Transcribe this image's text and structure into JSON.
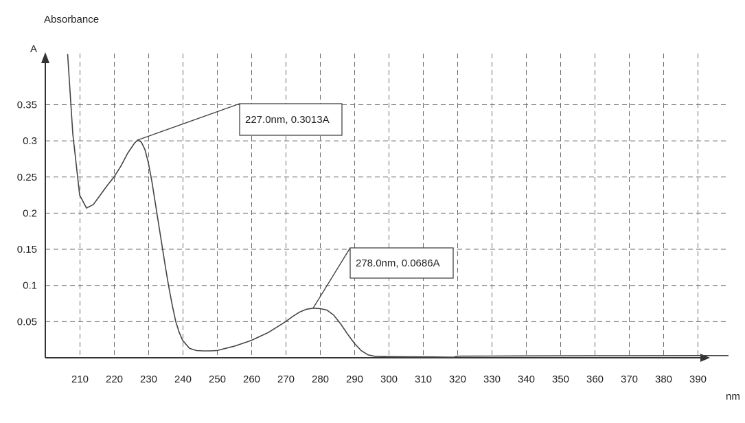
{
  "chart_data": {
    "type": "line",
    "title": "",
    "ylabel": "Absorbance",
    "y_axis_symbol": "A",
    "xlabel": "nm",
    "xlim": [
      200,
      400
    ],
    "ylim": [
      0,
      0.38
    ],
    "x_ticks": [
      "210",
      "220",
      "230",
      "240",
      "250",
      "260",
      "270",
      "280",
      "290",
      "300",
      "310",
      "320",
      "330",
      "340",
      "350",
      "360",
      "370",
      "380",
      "390"
    ],
    "y_ticks": [
      "0.05",
      "0.1",
      "0.15",
      "0.2",
      "0.25",
      "0.3",
      "0.35"
    ],
    "grid": true,
    "series": [
      {
        "x": [
          206.5,
          208,
          210,
          212,
          214,
          216,
          218,
          220,
          222,
          224,
          226,
          227,
          228,
          229,
          230,
          231,
          232,
          233,
          234,
          235,
          236,
          237,
          238,
          239,
          240,
          242,
          244,
          246,
          248,
          250,
          255,
          260,
          265,
          270,
          272,
          274,
          276,
          278,
          280,
          282,
          284,
          286,
          288,
          290,
          292,
          294,
          296,
          300,
          305,
          310,
          315,
          319,
          320,
          325,
          330,
          340,
          350,
          360,
          370,
          380,
          390,
          399
        ],
        "y": [
          0.42,
          0.31,
          0.225,
          0.207,
          0.212,
          0.225,
          0.238,
          0.25,
          0.265,
          0.283,
          0.297,
          0.3013,
          0.298,
          0.288,
          0.27,
          0.245,
          0.215,
          0.185,
          0.155,
          0.125,
          0.097,
          0.072,
          0.05,
          0.035,
          0.024,
          0.013,
          0.01,
          0.0095,
          0.0095,
          0.01,
          0.016,
          0.024,
          0.035,
          0.05,
          0.057,
          0.063,
          0.067,
          0.0686,
          0.068,
          0.066,
          0.059,
          0.047,
          0.033,
          0.02,
          0.01,
          0.004,
          0.002,
          0.0016,
          0.0013,
          0.0012,
          0.001,
          0.0008,
          0.0022,
          0.0023,
          0.0024,
          0.0026,
          0.0027,
          0.0028,
          0.0028,
          0.0029,
          0.003,
          0.003
        ]
      }
    ],
    "annotations": [
      {
        "text": "227.0nm, 0.3013A",
        "x": 227.0,
        "y": 0.3013
      },
      {
        "text": "278.0nm, 0.0686A",
        "x": 278.0,
        "y": 0.0686
      }
    ]
  }
}
